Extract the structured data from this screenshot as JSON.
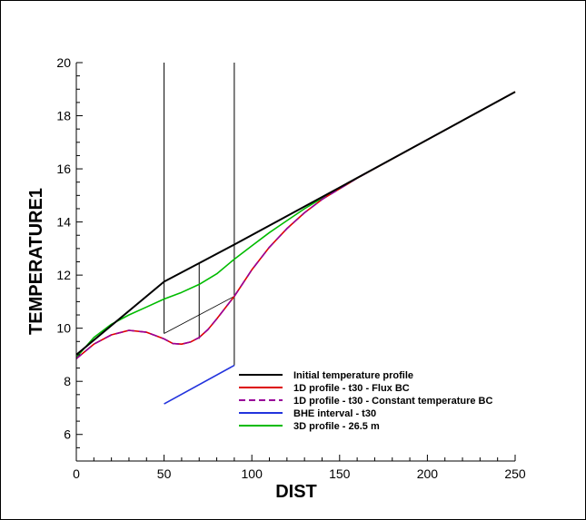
{
  "chart_data": {
    "type": "line",
    "xlabel": "DIST",
    "ylabel": "TEMPERATURE1",
    "xlim": [
      0,
      250
    ],
    "ylim": [
      5,
      20
    ],
    "x_ticks": [
      0,
      50,
      100,
      150,
      200,
      250
    ],
    "y_ticks": [
      6,
      8,
      10,
      12,
      14,
      16,
      18,
      20
    ],
    "grid": false,
    "legend_position": "bottom-right",
    "series": [
      {
        "name": "Initial temperature profile",
        "color": "#000000",
        "dash": "solid",
        "x": [
          0,
          50,
          70,
          90,
          150,
          250
        ],
        "y": [
          9.0,
          11.75,
          12.45,
          13.15,
          15.3,
          18.9
        ]
      },
      {
        "name": "1D profile - t30 - Flux BC",
        "color": "#dd0000",
        "dash": "solid",
        "x": [
          0,
          10,
          20,
          30,
          40,
          50,
          55,
          60,
          65,
          70,
          75,
          80,
          90,
          100,
          110,
          120,
          130,
          140,
          150,
          160,
          200,
          250
        ],
        "y": [
          8.85,
          9.4,
          9.75,
          9.92,
          9.85,
          9.6,
          9.42,
          9.4,
          9.48,
          9.65,
          9.95,
          10.35,
          11.2,
          12.2,
          13.05,
          13.75,
          14.35,
          14.85,
          15.25,
          15.65,
          17.1,
          18.9
        ]
      },
      {
        "name": "1D profile - t30 - Constant temperature BC",
        "color": "#990099",
        "dash": "dashed",
        "x": [
          0,
          10,
          20,
          30,
          40,
          50,
          55,
          60,
          65,
          70,
          75,
          80,
          90,
          100,
          110,
          120,
          130,
          140,
          150,
          160,
          200,
          250
        ],
        "y": [
          8.85,
          9.4,
          9.75,
          9.92,
          9.85,
          9.6,
          9.42,
          9.4,
          9.48,
          9.65,
          9.95,
          10.35,
          11.2,
          12.2,
          13.05,
          13.75,
          14.35,
          14.85,
          15.25,
          15.65,
          17.1,
          18.9
        ]
      },
      {
        "name": "BHE interval - t30",
        "color": "#2233dd",
        "dash": "solid",
        "x": [
          50,
          90
        ],
        "y": [
          7.15,
          8.6
        ]
      },
      {
        "name": "3D profile - 26.5 m",
        "color": "#00bb00",
        "dash": "solid",
        "x": [
          0,
          10,
          20,
          30,
          40,
          50,
          60,
          70,
          80,
          90,
          100,
          110,
          120,
          130,
          140,
          150,
          160,
          200,
          250
        ],
        "y": [
          8.9,
          9.65,
          10.15,
          10.5,
          10.8,
          11.1,
          11.35,
          11.65,
          12.05,
          12.6,
          13.1,
          13.6,
          14.05,
          14.5,
          14.9,
          15.25,
          15.65,
          17.1,
          18.9
        ]
      }
    ],
    "reference_lines": {
      "vertical": [
        {
          "x": 50,
          "y_from": 9.8,
          "y_to": 20
        },
        {
          "x": 70,
          "y_from": 9.6,
          "y_to": 12.45
        },
        {
          "x": 90,
          "y_from": 8.6,
          "y_to": 20
        }
      ],
      "diagonal": {
        "x": [
          50,
          90
        ],
        "y": [
          9.8,
          11.2
        ]
      }
    }
  }
}
